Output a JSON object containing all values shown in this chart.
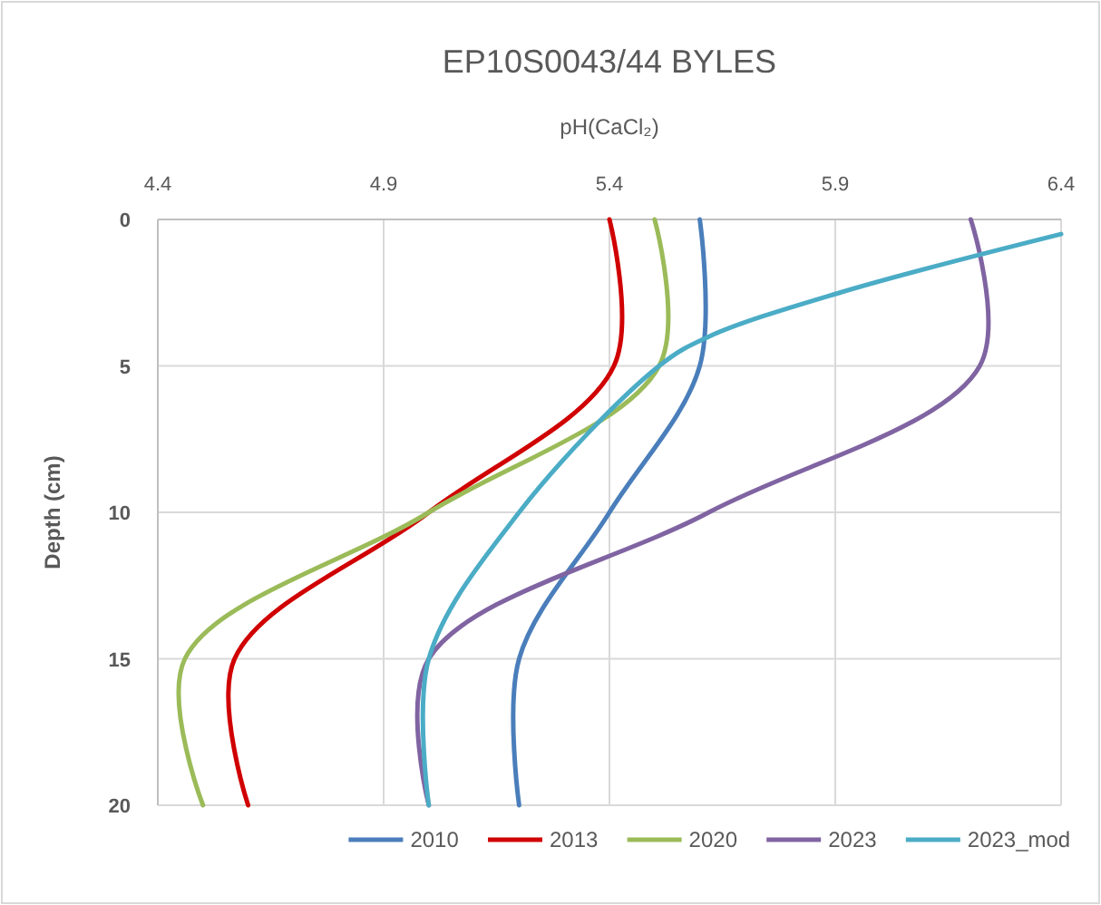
{
  "chart_data": {
    "type": "line",
    "title": "EP10S0043/44 BYLES",
    "xlabel": "pH(CaCl₂)",
    "ylabel": "Depth (cm)",
    "xlim": [
      4.4,
      6.4
    ],
    "xticks": [
      4.4,
      4.9,
      5.4,
      5.9,
      6.4
    ],
    "ylim": [
      20,
      0
    ],
    "yticks": [
      0,
      5,
      10,
      15,
      20
    ],
    "grid": true,
    "legend": "bottom",
    "marker": "none",
    "line_style": "solid",
    "series": [
      {
        "name": "2010",
        "color": "#4a7ebb",
        "x": [
          5.6,
          5.6,
          5.4,
          5.2,
          5.2
        ],
        "values": [
          0,
          5,
          10,
          15,
          20
        ]
      },
      {
        "name": "2013",
        "color": "#d00000",
        "x": [
          5.4,
          5.41,
          5.0,
          4.57,
          4.6
        ],
        "values": [
          0,
          5,
          10,
          15,
          20
        ]
      },
      {
        "name": "2020",
        "color": "#9bbb59",
        "x": [
          5.5,
          5.51,
          5.0,
          4.46,
          4.5
        ],
        "values": [
          0,
          5,
          10,
          15,
          20
        ]
      },
      {
        "name": "2023",
        "color": "#8064a2",
        "x": [
          6.2,
          6.22,
          5.62,
          5.0,
          5.0
        ],
        "values": [
          0,
          5,
          10,
          15,
          20
        ]
      },
      {
        "name": "2023_mod",
        "color": "#4bacc6",
        "x": [
          6.4,
          5.91,
          5.62,
          5.51,
          5.2,
          5.0,
          5.0
        ],
        "values": [
          0.5,
          2.5,
          4,
          5,
          10,
          15,
          20
        ]
      }
    ]
  }
}
